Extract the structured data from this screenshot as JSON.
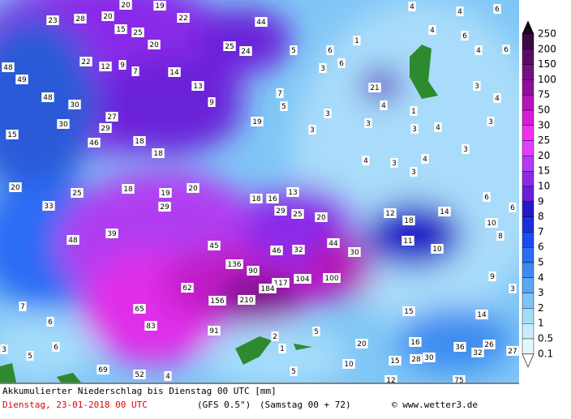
{
  "map": {
    "labels": [
      20,
      19,
      23,
      28,
      20,
      22,
      44,
      15,
      25,
      20,
      25,
      24,
      4,
      4,
      6,
      4,
      6,
      1,
      6,
      5,
      6,
      4,
      48,
      22,
      12,
      9,
      7,
      14,
      3,
      6,
      49,
      13,
      21,
      3,
      48,
      30,
      9,
      7,
      5,
      4,
      1,
      3,
      4,
      27,
      30,
      29,
      19,
      3,
      3,
      3,
      4,
      3,
      15,
      46,
      18,
      18,
      3,
      4,
      3,
      4,
      3,
      20,
      25,
      18,
      19,
      20,
      13,
      18,
      16,
      6,
      33,
      29,
      29,
      25,
      20,
      12,
      18,
      14,
      10,
      6,
      8,
      39,
      48,
      11,
      10,
      45,
      46,
      32,
      44,
      30,
      136,
      90,
      104,
      100,
      117,
      184,
      9,
      62,
      3,
      156,
      210,
      7,
      65,
      15,
      14,
      6,
      83,
      91,
      5,
      2,
      1,
      20,
      16,
      36,
      26,
      32,
      27,
      3,
      5,
      6,
      15,
      28,
      30,
      10,
      5,
      69,
      52,
      4,
      12,
      75
    ]
  },
  "legend": {
    "labels": [
      "250",
      "200",
      "150",
      "100",
      "75",
      "50",
      "30",
      "25",
      "20",
      "15",
      "10",
      "9",
      "8",
      "7",
      "6",
      "5",
      "4",
      "3",
      "2",
      "1",
      "0.5",
      "0.1"
    ],
    "colors": [
      "#1a0820",
      "#3c0a46",
      "#5a0c68",
      "#760f84",
      "#8e0f9c",
      "#b414b8",
      "#d41ed4",
      "#f02ef0",
      "#e040ff",
      "#b13cf0",
      "#8a2be8",
      "#6a20d8",
      "#2418c8",
      "#1a30e0",
      "#1c4cf0",
      "#2a6cf4",
      "#3c8cf0",
      "#58a8f4",
      "#7cc4f8",
      "#a4dcfa",
      "#c8ecfc",
      "#e4f6fe",
      "#ffffff"
    ]
  },
  "footer": {
    "title": "Akkumulierter Niederschlag bis Dienstag 00 UTC [mm]",
    "date": "Dienstag, 23-01-2018  00 UTC",
    "model": "(GFS 0.5°)",
    "run": "(Samstag 00 + 72)",
    "credit": "© www.wetter3.de"
  }
}
